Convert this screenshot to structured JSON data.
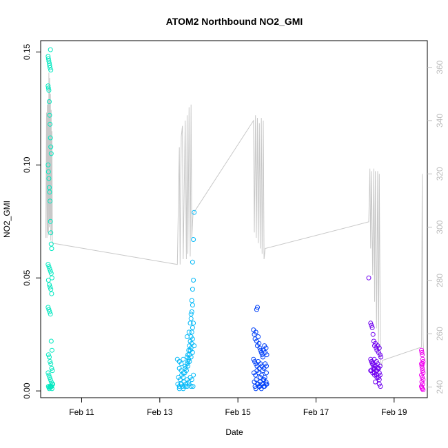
{
  "chart_data": {
    "type": "scatter",
    "title": "ATOM2 Northbound NO2_GMI",
    "xlabel": "Date",
    "ylabel": "NO2_GMI",
    "y2label": "",
    "x_unit": "day-of-February",
    "xlim": [
      9.95,
      19.85
    ],
    "ylim": [
      -0.003,
      0.155
    ],
    "y2lim": [
      236,
      370
    ],
    "x_ticks": [
      {
        "value": 11,
        "label": "Feb 11"
      },
      {
        "value": 13,
        "label": "Feb 13"
      },
      {
        "value": 15,
        "label": "Feb 15"
      },
      {
        "value": 17,
        "label": "Feb 17"
      },
      {
        "value": 19,
        "label": "Feb 19"
      }
    ],
    "y_ticks": [
      {
        "value": 0.0,
        "label": "0.00"
      },
      {
        "value": 0.05,
        "label": "0.05"
      },
      {
        "value": 0.1,
        "label": "0.10"
      },
      {
        "value": 0.15,
        "label": "0.15"
      }
    ],
    "y2_ticks": [
      {
        "value": 240,
        "label": "240"
      },
      {
        "value": 260,
        "label": "260"
      },
      {
        "value": 280,
        "label": "280"
      },
      {
        "value": 300,
        "label": "300"
      },
      {
        "value": 320,
        "label": "320"
      },
      {
        "value": 340,
        "label": "340"
      },
      {
        "value": 360,
        "label": "360"
      }
    ],
    "grid": false,
    "legend": "none",
    "line_color": "#c8c8c8",
    "series": [
      {
        "color": "#00e8c0",
        "x": [
          10.14,
          10.15,
          10.16,
          10.17,
          10.18,
          10.19,
          10.2,
          10.21,
          10.14,
          10.15,
          10.16,
          10.17,
          10.18,
          10.19,
          10.2,
          10.21,
          10.22,
          10.14,
          10.15,
          10.16,
          10.17,
          10.18,
          10.19,
          10.2,
          10.21,
          10.22,
          10.23,
          10.14,
          10.16,
          10.18,
          10.2,
          10.22,
          10.24,
          10.15,
          10.17,
          10.19,
          10.21,
          10.23,
          10.14,
          10.16,
          10.18,
          10.2,
          10.22,
          10.24,
          10.15,
          10.17,
          10.19,
          10.21,
          10.23,
          10.25,
          10.14,
          10.16,
          10.18,
          10.2,
          10.22,
          10.24,
          10.26,
          10.15,
          10.19,
          10.23,
          10.16,
          10.2,
          10.24,
          10.17,
          10.21
        ],
        "y": [
          0.148,
          0.147,
          0.146,
          0.145,
          0.144,
          0.143,
          0.151,
          0.142,
          0.135,
          0.134,
          0.133,
          0.128,
          0.122,
          0.118,
          0.112,
          0.108,
          0.105,
          0.1,
          0.097,
          0.094,
          0.09,
          0.088,
          0.084,
          0.075,
          0.07,
          0.065,
          0.063,
          0.056,
          0.055,
          0.054,
          0.053,
          0.052,
          0.05,
          0.049,
          0.047,
          0.046,
          0.045,
          0.043,
          0.037,
          0.036,
          0.035,
          0.034,
          0.022,
          0.018,
          0.016,
          0.015,
          0.013,
          0.012,
          0.01,
          0.009,
          0.008,
          0.007,
          0.006,
          0.005,
          0.004,
          0.003,
          0.003,
          0.002,
          0.002,
          0.002,
          0.0015,
          0.0015,
          0.001,
          0.001,
          0.002
        ]
      },
      {
        "color": "#00b8f8",
        "x": [
          13.45,
          13.5,
          13.55,
          13.6,
          13.65,
          13.7,
          13.72,
          13.74,
          13.76,
          13.78,
          13.8,
          13.82,
          13.84,
          13.86,
          13.5,
          13.55,
          13.6,
          13.65,
          13.7,
          13.72,
          13.74,
          13.76,
          13.78,
          13.8,
          13.82,
          13.84,
          13.48,
          13.52,
          13.56,
          13.6,
          13.64,
          13.68,
          13.72,
          13.76,
          13.8,
          13.84,
          13.88,
          13.46,
          13.5,
          13.54,
          13.58,
          13.62,
          13.66,
          13.7,
          13.74,
          13.78,
          13.82,
          13.86,
          13.5,
          13.6,
          13.7,
          13.8,
          13.55,
          13.65,
          13.75,
          13.85,
          13.7,
          13.75,
          13.8,
          13.82,
          13.84,
          13.78,
          13.8,
          13.82,
          13.84,
          13.86,
          13.84,
          13.86,
          13.88
        ],
        "y": [
          0.014,
          0.013,
          0.012,
          0.014,
          0.011,
          0.015,
          0.016,
          0.018,
          0.02,
          0.022,
          0.024,
          0.026,
          0.028,
          0.03,
          0.01,
          0.009,
          0.008,
          0.01,
          0.012,
          0.013,
          0.014,
          0.016,
          0.018,
          0.019,
          0.021,
          0.023,
          0.006,
          0.005,
          0.007,
          0.006,
          0.008,
          0.009,
          0.011,
          0.013,
          0.015,
          0.017,
          0.02,
          0.003,
          0.002,
          0.003,
          0.002,
          0.004,
          0.003,
          0.005,
          0.004,
          0.006,
          0.005,
          0.007,
          0.001,
          0.001,
          0.002,
          0.002,
          0.003,
          0.002,
          0.003,
          0.002,
          0.024,
          0.026,
          0.032,
          0.035,
          0.038,
          0.03,
          0.034,
          0.04,
          0.045,
          0.049,
          0.057,
          0.067,
          0.079
        ]
      },
      {
        "color": "#0040f8",
        "x": [
          15.4,
          15.42,
          15.44,
          15.46,
          15.48,
          15.5,
          15.52,
          15.54,
          15.56,
          15.58,
          15.6,
          15.62,
          15.64,
          15.66,
          15.68,
          15.7,
          15.72,
          15.74,
          15.4,
          15.43,
          15.46,
          15.49,
          15.52,
          15.55,
          15.58,
          15.61,
          15.64,
          15.67,
          15.7,
          15.73,
          15.41,
          15.45,
          15.49,
          15.53,
          15.57,
          15.61,
          15.65,
          15.69,
          15.73,
          15.42,
          15.47,
          15.52,
          15.57,
          15.62,
          15.67,
          15.72,
          15.44,
          15.5,
          15.56,
          15.62,
          15.68,
          15.74,
          15.46,
          15.54,
          15.6,
          15.66,
          15.72,
          15.48,
          15.5
        ],
        "y": [
          0.027,
          0.025,
          0.023,
          0.026,
          0.022,
          0.02,
          0.024,
          0.021,
          0.019,
          0.018,
          0.017,
          0.016,
          0.015,
          0.018,
          0.02,
          0.017,
          0.019,
          0.016,
          0.014,
          0.013,
          0.012,
          0.011,
          0.013,
          0.01,
          0.012,
          0.011,
          0.009,
          0.01,
          0.012,
          0.011,
          0.008,
          0.007,
          0.009,
          0.008,
          0.006,
          0.007,
          0.005,
          0.006,
          0.008,
          0.004,
          0.005,
          0.003,
          0.004,
          0.003,
          0.005,
          0.004,
          0.002,
          0.003,
          0.002,
          0.003,
          0.002,
          0.003,
          0.001,
          0.002,
          0.001,
          0.002,
          0.003,
          0.036,
          0.037
        ]
      },
      {
        "color": "#7000f0",
        "x": [
          18.35,
          18.4,
          18.42,
          18.44,
          18.46,
          18.48,
          18.5,
          18.52,
          18.54,
          18.56,
          18.58,
          18.6,
          18.62,
          18.64,
          18.66,
          18.4,
          18.43,
          18.46,
          18.49,
          18.52,
          18.55,
          18.58,
          18.61,
          18.64,
          18.42,
          18.46,
          18.5,
          18.54,
          18.58,
          18.62,
          18.44,
          18.5,
          18.56,
          18.62,
          18.48,
          18.56,
          18.64,
          18.4,
          18.45,
          18.5,
          18.55,
          18.6,
          18.65,
          18.42,
          18.52,
          18.62
        ],
        "y": [
          0.05,
          0.03,
          0.029,
          0.028,
          0.025,
          0.022,
          0.02,
          0.021,
          0.019,
          0.018,
          0.02,
          0.017,
          0.019,
          0.016,
          0.015,
          0.014,
          0.013,
          0.012,
          0.014,
          0.011,
          0.013,
          0.012,
          0.01,
          0.011,
          0.009,
          0.01,
          0.008,
          0.009,
          0.01,
          0.008,
          0.012,
          0.007,
          0.006,
          0.005,
          0.011,
          0.009,
          0.007,
          0.009,
          0.008,
          0.01,
          0.007,
          0.006,
          0.002,
          0.013,
          0.004,
          0.003
        ]
      },
      {
        "color": "#f000f0",
        "x": [
          19.7,
          19.71,
          19.72,
          19.73,
          19.74,
          19.7,
          19.71,
          19.72,
          19.73,
          19.74,
          19.7,
          19.72,
          19.74,
          19.71,
          19.73,
          19.7,
          19.72,
          19.74,
          19.71,
          19.73
        ],
        "y": [
          0.018,
          0.017,
          0.016,
          0.014,
          0.013,
          0.012,
          0.011,
          0.01,
          0.009,
          0.008,
          0.007,
          0.006,
          0.005,
          0.004,
          0.003,
          0.002,
          0.001,
          0.0005,
          0.0015,
          0.012
        ]
      }
    ],
    "secondary_line": {
      "axis": "right",
      "x": [
        10.08,
        10.1,
        10.11,
        10.12,
        10.13,
        10.14,
        10.15,
        10.16,
        10.17,
        10.18,
        10.19,
        10.2,
        10.21,
        10.22,
        10.23,
        10.24,
        10.25,
        13.45,
        13.5,
        13.52,
        13.55,
        13.58,
        13.6,
        13.65,
        13.68,
        13.7,
        13.72,
        13.75,
        13.78,
        13.8,
        13.82,
        13.85,
        15.4,
        15.42,
        15.45,
        15.47,
        15.5,
        15.52,
        15.55,
        15.57,
        15.6,
        15.62,
        15.65,
        15.67,
        15.7,
        18.35,
        18.38,
        18.4,
        18.42,
        18.45,
        18.48,
        18.5,
        18.52,
        18.55,
        18.58,
        18.6,
        18.62,
        18.65,
        18.68,
        18.7,
        19.7,
        19.72,
        19.74,
        19.76
      ],
      "y": [
        296,
        343,
        296,
        346,
        298,
        348,
        297,
        358,
        300,
        356,
        302,
        350,
        295,
        344,
        297,
        336,
        294,
        286,
        330,
        286,
        334,
        338,
        288,
        340,
        288,
        342,
        290,
        345,
        289,
        346,
        296,
        305,
        340,
        298,
        342,
        296,
        341,
        294,
        339,
        292,
        341,
        290,
        340,
        288,
        292,
        302,
        322,
        292,
        321,
        282,
        322,
        272,
        321,
        262,
        321,
        252,
        320,
        250,
        248,
        250,
        255,
        320,
        258,
        252
      ]
    }
  }
}
